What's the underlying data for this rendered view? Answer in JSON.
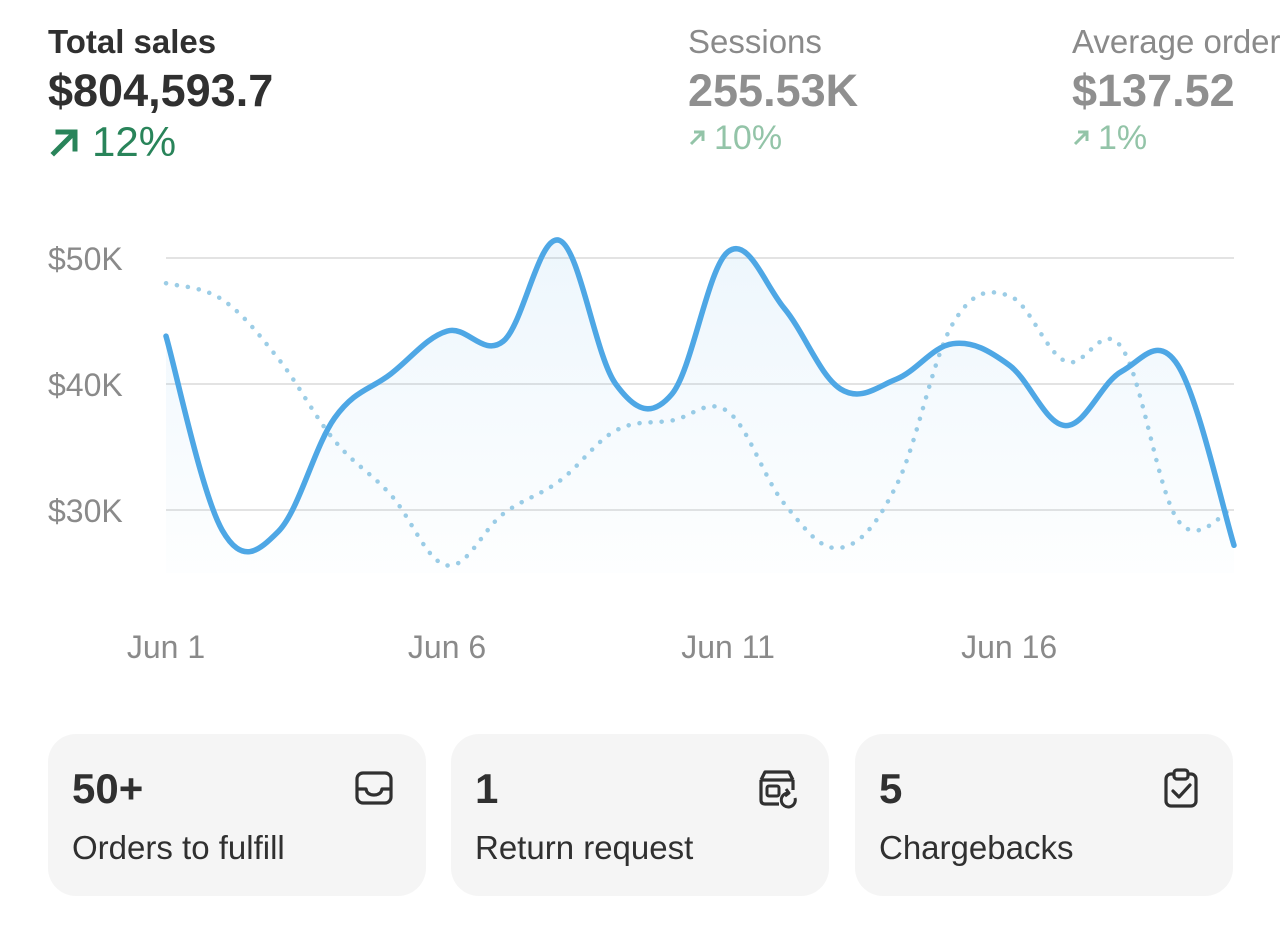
{
  "metrics": [
    {
      "label": "Total sales",
      "value": "$804,593.7",
      "delta": "12%"
    },
    {
      "label": "Sessions",
      "value": "255.53K",
      "delta": "10%"
    },
    {
      "label": "Average order value",
      "value": "$137.52",
      "delta": "1%"
    }
  ],
  "chart_data": {
    "type": "line",
    "x": [
      "Jun 1",
      "Jun 2",
      "Jun 3",
      "Jun 4",
      "Jun 5",
      "Jun 6",
      "Jun 7",
      "Jun 8",
      "Jun 9",
      "Jun 10",
      "Jun 11",
      "Jun 12",
      "Jun 13",
      "Jun 14",
      "Jun 15",
      "Jun 16",
      "Jun 17",
      "Jun 18",
      "Jun 19",
      "Jun 20"
    ],
    "tick_labels": [
      "Jun 1",
      "Jun 6",
      "Jun 11",
      "Jun 16"
    ],
    "y_tick_labels": [
      "$30K",
      "$40K",
      "$50K"
    ],
    "yticks": [
      30000,
      40000,
      50000
    ],
    "ylim": [
      25000,
      53000
    ],
    "series": [
      {
        "style": "solid",
        "color": "#4ea7e5",
        "values": [
          43800,
          28400,
          28300,
          37300,
          40800,
          44200,
          43400,
          51400,
          40000,
          39200,
          50500,
          46000,
          39600,
          40400,
          43200,
          41500,
          36700,
          41000,
          41500,
          27200
        ]
      },
      {
        "style": "dotted",
        "color": "#9ccde6",
        "values": [
          48000,
          46700,
          42000,
          35500,
          31200,
          25600,
          29700,
          32300,
          36300,
          37100,
          37800,
          30500,
          27000,
          32000,
          44800,
          47000,
          41800,
          42900,
          29200,
          30200
        ]
      }
    ],
    "grid": true,
    "legend": "none"
  },
  "cards": [
    {
      "count": "50+",
      "label": "Orders to fulfill",
      "icon": "inbox-icon"
    },
    {
      "count": "1",
      "label": "Return request",
      "icon": "return-box-icon"
    },
    {
      "count": "5",
      "label": "Chargebacks",
      "icon": "clipboard-check-icon"
    }
  ],
  "colors": {
    "positive": "#29845a",
    "positive_muted": "#93c4a8",
    "line_primary": "#4ea7e5",
    "line_comparison": "#9ccde6",
    "card_bg": "#f5f5f5"
  }
}
